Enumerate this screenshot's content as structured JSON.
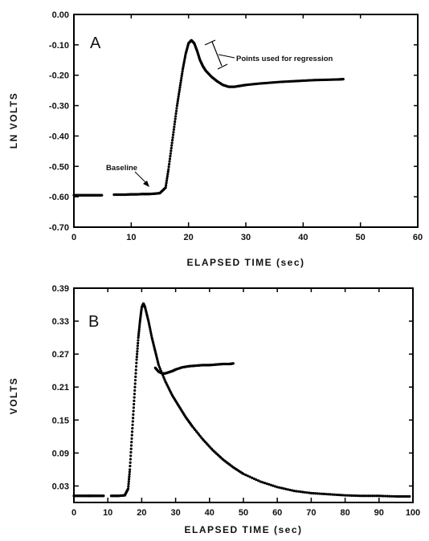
{
  "chart_data": [
    {
      "type": "scatter",
      "panel_label": "A",
      "xlabel": "ELAPSED TIME (sec)",
      "ylabel": "LN VOLTS",
      "xlim": [
        0,
        60
      ],
      "ylim": [
        -0.7,
        0.0
      ],
      "xticks": [
        0,
        10,
        20,
        30,
        40,
        50,
        60
      ],
      "xtick_labels": [
        "0",
        "10",
        "20",
        "30",
        "40",
        "50",
        "60"
      ],
      "yticks": [
        0.0,
        -0.1,
        -0.2,
        -0.3,
        -0.4,
        -0.5,
        -0.6,
        -0.7
      ],
      "ytick_labels": [
        "0.00",
        "-0.10",
        "-0.20",
        "-0.30",
        "-0.40",
        "-0.50",
        "-0.60",
        "-0.70"
      ],
      "grid": false,
      "annotations": [
        {
          "text": "Baseline",
          "x": 14,
          "y": -0.58
        },
        {
          "text": "Points used for regression",
          "x_range": [
            22,
            25
          ],
          "y_range": [
            -0.22,
            -0.12
          ]
        }
      ],
      "series": [
        {
          "x": [
            0,
            1,
            2,
            3,
            4,
            5,
            7,
            8,
            9,
            10,
            11,
            12,
            13,
            14,
            15,
            16,
            16.5,
            17,
            17.5,
            18,
            18.5,
            19,
            19.5,
            20,
            20.5,
            21,
            21.5,
            22,
            22.5,
            23,
            24,
            25,
            26,
            27,
            28,
            29,
            30,
            32,
            34,
            36,
            38,
            40,
            42,
            44,
            46,
            47
          ],
          "y": [
            -0.595,
            -0.595,
            -0.595,
            -0.595,
            -0.595,
            -0.595,
            -0.593,
            -0.593,
            -0.593,
            -0.592,
            -0.592,
            -0.591,
            -0.591,
            -0.59,
            -0.588,
            -0.57,
            -0.51,
            -0.44,
            -0.37,
            -0.3,
            -0.24,
            -0.18,
            -0.13,
            -0.095,
            -0.085,
            -0.095,
            -0.12,
            -0.15,
            -0.17,
            -0.185,
            -0.205,
            -0.22,
            -0.232,
            -0.238,
            -0.238,
            -0.235,
            -0.232,
            -0.228,
            -0.225,
            -0.222,
            -0.22,
            -0.218,
            -0.216,
            -0.215,
            -0.214,
            -0.213
          ]
        }
      ]
    },
    {
      "type": "scatter",
      "panel_label": "B",
      "xlabel": "ELAPSED TIME (sec)",
      "ylabel": "VOLTS",
      "xlim": [
        0,
        100
      ],
      "ylim": [
        0.0,
        0.39
      ],
      "xticks": [
        0,
        10,
        20,
        30,
        40,
        50,
        60,
        70,
        80,
        90,
        100
      ],
      "xtick_labels": [
        "0",
        "10",
        "20",
        "30",
        "40",
        "50",
        "60",
        "70",
        "80",
        "90",
        "100"
      ],
      "yticks": [
        0.03,
        0.09,
        0.15,
        0.21,
        0.27,
        0.33,
        0.39
      ],
      "ytick_labels": [
        "0.03",
        "0.09",
        "0.15",
        "0.21",
        "0.27",
        "0.33",
        "0.39"
      ],
      "grid": false,
      "series": [
        {
          "x": [
            0,
            2,
            4,
            5,
            7,
            9,
            11,
            13,
            15,
            16,
            16.5,
            17,
            17.5,
            18,
            18.5,
            19,
            19.5,
            20,
            20.5,
            21,
            22,
            23,
            24,
            25,
            27,
            29,
            31,
            33,
            35,
            38,
            41,
            44,
            47,
            50,
            55,
            60,
            65,
            70,
            75,
            80,
            85,
            90,
            95,
            99
          ],
          "y": [
            0.012,
            0.012,
            0.012,
            0.012,
            0.012,
            0.012,
            0.012,
            0.012,
            0.013,
            0.025,
            0.06,
            0.11,
            0.16,
            0.21,
            0.26,
            0.3,
            0.33,
            0.355,
            0.362,
            0.355,
            0.33,
            0.3,
            0.275,
            0.25,
            0.22,
            0.195,
            0.175,
            0.155,
            0.138,
            0.115,
            0.095,
            0.078,
            0.064,
            0.052,
            0.038,
            0.028,
            0.021,
            0.017,
            0.015,
            0.013,
            0.012,
            0.012,
            0.011,
            0.011
          ]
        },
        {
          "x": [
            24,
            25,
            26,
            27,
            28,
            29,
            30,
            32,
            34,
            36,
            38,
            40,
            42,
            44,
            46,
            47
          ],
          "y": [
            0.245,
            0.238,
            0.235,
            0.235,
            0.237,
            0.239,
            0.242,
            0.246,
            0.248,
            0.249,
            0.25,
            0.25,
            0.251,
            0.252,
            0.252,
            0.253
          ]
        }
      ]
    }
  ]
}
